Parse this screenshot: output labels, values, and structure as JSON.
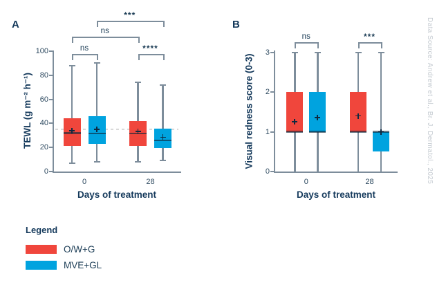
{
  "watermark": "Data Source: Andrew et al., Br. J. Dermatol., 2025",
  "legend": {
    "title": "Legend",
    "items": [
      {
        "label": "O/W+G",
        "color": "#f0463c"
      },
      {
        "label": "MVE+GL",
        "color": "#00a3df"
      }
    ]
  },
  "colors": {
    "red": "#f0463c",
    "blue": "#00a3df",
    "axis_gray": "#7d8d9b",
    "navy": "#14395b",
    "tick_text": "#2e4a60",
    "reference_line": "#d9d9d9",
    "median_overlay": "rgba(13,38,58,0.62)",
    "mean_marker": "#0f2940",
    "watermark_gray": "#c6ccd2"
  },
  "chart_data": [
    {
      "type": "box",
      "panel_label": "A",
      "xlabel": "Days of treatment",
      "ylabel": "TEWL (g m⁻² h⁻¹)",
      "ylim": [
        0,
        100
      ],
      "yticks": [
        0,
        20,
        40,
        60,
        80,
        100
      ],
      "categories": [
        "0",
        "28"
      ],
      "reference_line": 35,
      "legend_position": "bottom-left",
      "grid": false,
      "series": [
        {
          "name": "O/W+G",
          "color": "#f0463c",
          "boxes": [
            {
              "category": "0",
              "min": 7,
              "q1": 21,
              "median": 32,
              "mean": 34,
              "q3": 44,
              "max": 88
            },
            {
              "category": "28",
              "min": 8,
              "q1": 21.5,
              "median": 31.5,
              "mean": 33.5,
              "q3": 42,
              "max": 74
            }
          ]
        },
        {
          "name": "MVE+GL",
          "color": "#00a3df",
          "boxes": [
            {
              "category": "0",
              "min": 8,
              "q1": 23,
              "median": 31.5,
              "mean": 35,
              "q3": 46,
              "max": 90
            },
            {
              "category": "28",
              "min": 9,
              "q1": 19.5,
              "median": 26,
              "mean": 28.5,
              "q3": 35.5,
              "max": 72
            }
          ]
        }
      ],
      "significance": [
        {
          "label": "ns",
          "level": 1,
          "from": {
            "category": "0",
            "series": "O/W+G"
          },
          "to": {
            "category": "0",
            "series": "MVE+GL"
          }
        },
        {
          "label": "****",
          "level": 1,
          "from": {
            "category": "28",
            "series": "O/W+G"
          },
          "to": {
            "category": "28",
            "series": "MVE+GL"
          }
        },
        {
          "label": "ns",
          "level": 2,
          "from": {
            "category": "0",
            "series": "O/W+G"
          },
          "to": {
            "category": "28",
            "series": "O/W+G"
          }
        },
        {
          "label": "***",
          "level": 3,
          "from": {
            "category": "0",
            "series": "MVE+GL"
          },
          "to": {
            "category": "28",
            "series": "MVE+GL"
          }
        }
      ]
    },
    {
      "type": "box",
      "panel_label": "B",
      "xlabel": "Days of treatment",
      "ylabel": "Visual redness score (0-3)",
      "ylim": [
        0,
        3
      ],
      "yticks": [
        0,
        1,
        2,
        3
      ],
      "categories": [
        "0",
        "28"
      ],
      "reference_line": null,
      "grid": false,
      "series": [
        {
          "name": "O/W+G",
          "color": "#f0463c",
          "boxes": [
            {
              "category": "0",
              "min": 0,
              "q1": 1,
              "median": 1,
              "mean": 1.25,
              "q3": 2,
              "max": 3
            },
            {
              "category": "28",
              "min": 0,
              "q1": 1,
              "median": 1,
              "mean": 1.4,
              "q3": 2,
              "max": 3
            }
          ]
        },
        {
          "name": "MVE+GL",
          "color": "#00a3df",
          "boxes": [
            {
              "category": "0",
              "min": 0,
              "q1": 1,
              "median": 1,
              "mean": 1.35,
              "q3": 2,
              "max": 3
            },
            {
              "category": "28",
              "min": 0,
              "q1": 0.5,
              "median": 1,
              "mean": 1.0,
              "q3": 1,
              "max": 3
            }
          ]
        }
      ],
      "significance": [
        {
          "label": "ns",
          "level": 1,
          "from": {
            "category": "0",
            "series": "O/W+G"
          },
          "to": {
            "category": "0",
            "series": "MVE+GL"
          }
        },
        {
          "label": "***",
          "level": 1,
          "from": {
            "category": "28",
            "series": "O/W+G"
          },
          "to": {
            "category": "28",
            "series": "MVE+GL"
          }
        }
      ]
    }
  ]
}
